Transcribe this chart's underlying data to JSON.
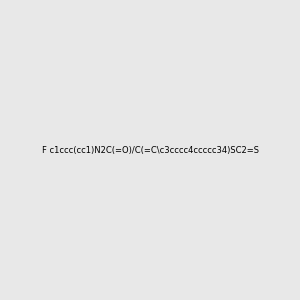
{
  "smiles": "F c1ccc(cc1)N2C(=O)/C(=C\\c3cccc4ccccc34)SC2=S",
  "image_size": 300,
  "background_color": "#e8e8e8",
  "bond_color": "#2d6b6b",
  "atom_colors": {
    "S": "#cccc00",
    "N": "#0000ff",
    "O": "#ff0000",
    "F": "#ff69b4",
    "H": "#4a9a9a",
    "C": "#2d6b6b"
  },
  "title": ""
}
